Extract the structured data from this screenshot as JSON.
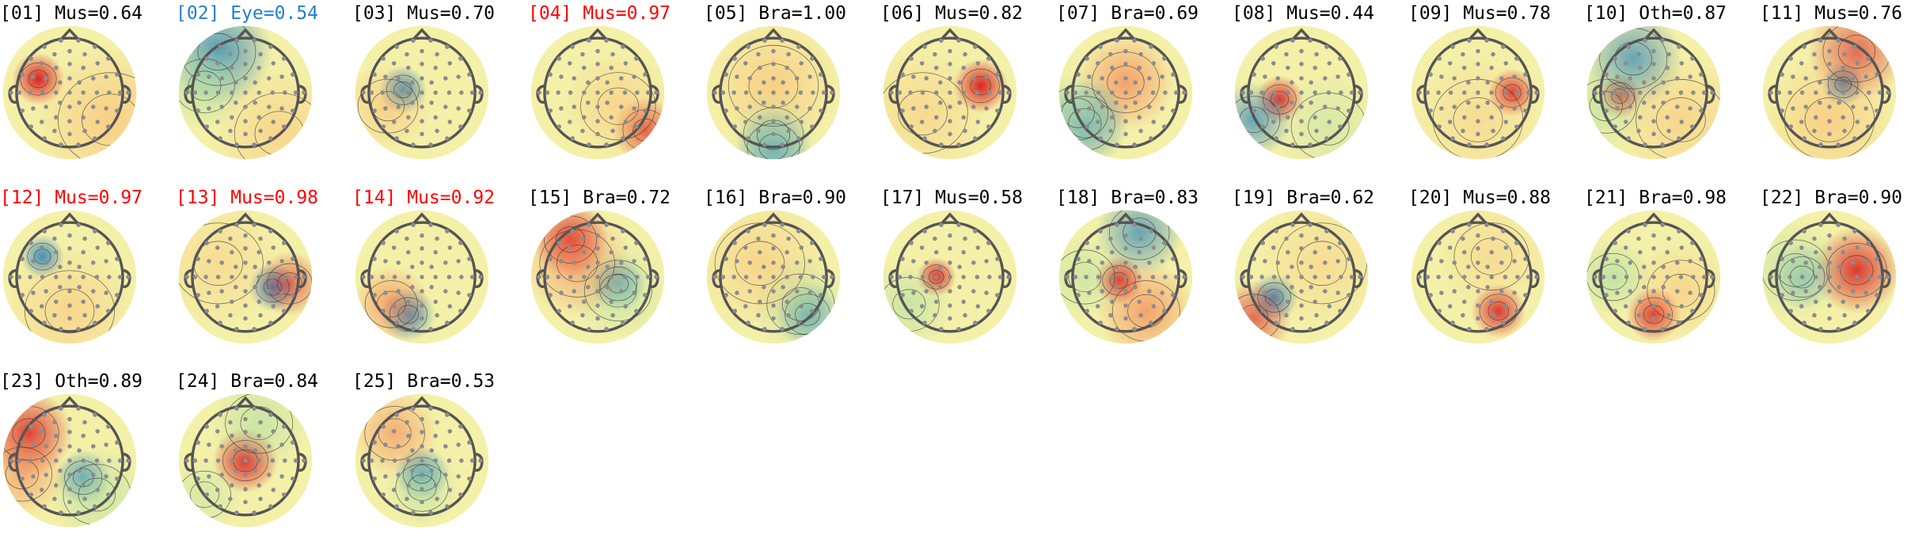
{
  "figure": {
    "colors": {
      "default": "#000000",
      "highlight": "#ff0000",
      "eye": "#1f7fd6",
      "electrode": "#8c8c8c",
      "head": "#555555"
    },
    "components": [
      {
        "label": "[01] Mus=0.64",
        "category": "Mus",
        "score": 0.64,
        "status": "default"
      },
      {
        "label": "[02] Eye=0.54",
        "category": "Eye",
        "score": 0.54,
        "status": "eye"
      },
      {
        "label": "[03] Mus=0.70",
        "category": "Mus",
        "score": 0.7,
        "status": "default"
      },
      {
        "label": "[04] Mus=0.97",
        "category": "Mus",
        "score": 0.97,
        "status": "highlight"
      },
      {
        "label": "[05] Bra=1.00",
        "category": "Bra",
        "score": 1.0,
        "status": "default"
      },
      {
        "label": "[06] Mus=0.82",
        "category": "Mus",
        "score": 0.82,
        "status": "default"
      },
      {
        "label": "[07] Bra=0.69",
        "category": "Bra",
        "score": 0.69,
        "status": "default"
      },
      {
        "label": "[08] Mus=0.44",
        "category": "Mus",
        "score": 0.44,
        "status": "default"
      },
      {
        "label": "[09] Mus=0.78",
        "category": "Mus",
        "score": 0.78,
        "status": "default"
      },
      {
        "label": "[10] Oth=0.87",
        "category": "Oth",
        "score": 0.87,
        "status": "default"
      },
      {
        "label": "[11] Mus=0.76",
        "category": "Mus",
        "score": 0.76,
        "status": "default"
      },
      {
        "label": "[12] Mus=0.97",
        "category": "Mus",
        "score": 0.97,
        "status": "highlight"
      },
      {
        "label": "[13] Mus=0.98",
        "category": "Mus",
        "score": 0.98,
        "status": "highlight"
      },
      {
        "label": "[14] Mus=0.92",
        "category": "Mus",
        "score": 0.92,
        "status": "highlight"
      },
      {
        "label": "[15] Bra=0.72",
        "category": "Bra",
        "score": 0.72,
        "status": "default"
      },
      {
        "label": "[16] Bra=0.90",
        "category": "Bra",
        "score": 0.9,
        "status": "default"
      },
      {
        "label": "[17] Mus=0.58",
        "category": "Mus",
        "score": 0.58,
        "status": "default"
      },
      {
        "label": "[18] Bra=0.83",
        "category": "Bra",
        "score": 0.83,
        "status": "default"
      },
      {
        "label": "[19] Bra=0.62",
        "category": "Bra",
        "score": 0.62,
        "status": "default"
      },
      {
        "label": "[20] Mus=0.88",
        "category": "Mus",
        "score": 0.88,
        "status": "default"
      },
      {
        "label": "[21] Bra=0.98",
        "category": "Bra",
        "score": 0.98,
        "status": "default"
      },
      {
        "label": "[22] Bra=0.90",
        "category": "Bra",
        "score": 0.9,
        "status": "default"
      },
      {
        "label": "[23] Oth=0.89",
        "category": "Oth",
        "score": 0.89,
        "status": "default"
      },
      {
        "label": "[24] Bra=0.84",
        "category": "Bra",
        "score": 0.84,
        "status": "default"
      },
      {
        "label": "[25] Bra=0.53",
        "category": "Bra",
        "score": 0.53,
        "status": "default"
      }
    ]
  }
}
